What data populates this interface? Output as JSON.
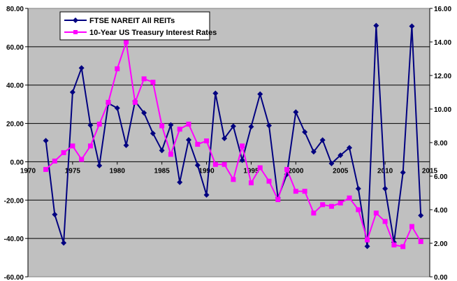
{
  "chart_data": {
    "type": "line",
    "legend_placement": "top-left",
    "grid": true,
    "plot_background": "#c0c0c0",
    "x_axis": {
      "min": 1970,
      "max": 2015,
      "ticks": [
        "1970",
        "1975",
        "1980",
        "1985",
        "1990",
        "1995",
        "2000",
        "2005",
        "2010",
        "2015"
      ]
    },
    "y_left": {
      "min": -60,
      "max": 80,
      "ticks": [
        "-60.00",
        "-40.00",
        "-20.00",
        "0.00",
        "20.00",
        "40.00",
        "60.00",
        "80.00"
      ]
    },
    "y_right": {
      "min": 0,
      "max": 16,
      "ticks": [
        "0.00",
        "2.00",
        "4.00",
        "6.00",
        "8.00",
        "10.00",
        "12.00",
        "14.00",
        "16.00"
      ]
    },
    "series": [
      {
        "name": "FTSE NAREIT All REITs",
        "color": "#000080",
        "marker": "diamond",
        "axis": "left",
        "x": [
          1972,
          1973,
          1974,
          1975,
          1976,
          1977,
          1978,
          1979,
          1980,
          1981,
          1982,
          1983,
          1984,
          1985,
          1986,
          1987,
          1988,
          1989,
          1990,
          1991,
          1992,
          1993,
          1994,
          1995,
          1996,
          1997,
          1998,
          1999,
          2000,
          2001,
          2002,
          2003,
          2004,
          2005,
          2006,
          2007,
          2008,
          2009,
          2010,
          2011,
          2012,
          2013,
          2014
        ],
        "values": [
          11.0,
          -27.5,
          -42.3,
          36.3,
          48.9,
          19.1,
          -2.0,
          30.5,
          28.0,
          8.6,
          31.6,
          25.5,
          14.8,
          5.9,
          19.2,
          -10.7,
          11.4,
          -1.8,
          -17.3,
          35.7,
          12.2,
          18.5,
          0.8,
          18.3,
          35.3,
          18.9,
          -18.8,
          -6.5,
          25.9,
          15.5,
          5.2,
          11.3,
          -0.9,
          3.4,
          7.3,
          -14.0,
          -44.1,
          71.0,
          -14.0,
          -42.0,
          -5.6,
          70.7,
          -28.0
        ]
      },
      {
        "name": "10-Year US Treasury Interest Rates",
        "color": "#ff00ff",
        "marker": "square",
        "axis": "right",
        "x": [
          1972,
          1973,
          1974,
          1975,
          1976,
          1977,
          1978,
          1979,
          1980,
          1981,
          1982,
          1983,
          1984,
          1985,
          1986,
          1987,
          1988,
          1989,
          1990,
          1991,
          1992,
          1993,
          1994,
          1995,
          1996,
          1997,
          1998,
          1999,
          2000,
          2001,
          2002,
          2003,
          2004,
          2005,
          2006,
          2007,
          2008,
          2009,
          2010,
          2011,
          2012,
          2013,
          2014
        ],
        "values": [
          6.4,
          6.9,
          7.4,
          7.8,
          7.0,
          7.8,
          9.1,
          10.4,
          12.4,
          14.0,
          10.4,
          11.8,
          11.6,
          9.0,
          7.3,
          8.8,
          9.1,
          7.9,
          8.1,
          6.7,
          6.7,
          5.8,
          7.8,
          5.6,
          6.5,
          5.7,
          4.6,
          6.4,
          5.1,
          5.1,
          3.8,
          4.3,
          4.2,
          4.4,
          4.7,
          4.0,
          2.2,
          3.8,
          3.3,
          1.9,
          1.8,
          3.0,
          2.1
        ]
      }
    ]
  }
}
